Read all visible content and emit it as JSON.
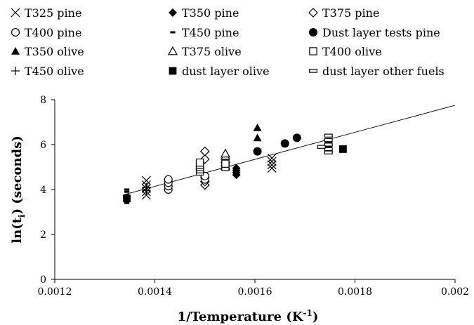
{
  "chart_data": {
    "type": "scatter",
    "title": "",
    "xlabel": "1/Temperature (K",
    "xlabel_sup": "-1",
    "xlabel_close": ")",
    "ylabel": "ln(t",
    "ylabel_sub": "i",
    "ylabel_close": ")  (seconds)",
    "xlim": [
      0.0012,
      0.002
    ],
    "ylim": [
      0,
      8
    ],
    "x_ticks": [
      "0.0012",
      "0.0014",
      "0.0016",
      "0.0018",
      "0.002"
    ],
    "y_ticks": [
      "0",
      "2",
      "4",
      "6",
      "8"
    ],
    "grid": false,
    "legend_position": "top",
    "trendline": {
      "x": [
        0.00134,
        0.002
      ],
      "y": [
        3.78,
        7.75
      ]
    },
    "series": [
      {
        "name": "T325 pine",
        "marker": "cross",
        "points": [
          [
            0.001383,
            3.75
          ],
          [
            0.001383,
            3.9
          ],
          [
            0.001383,
            4.05
          ],
          [
            0.001383,
            4.2
          ],
          [
            0.001383,
            4.4
          ],
          [
            0.001634,
            4.95
          ],
          [
            0.001634,
            5.1
          ],
          [
            0.001634,
            5.25
          ],
          [
            0.001634,
            5.4
          ]
        ]
      },
      {
        "name": "T350 pine",
        "marker": "diamond-filled",
        "points": [
          [
            0.001563,
            4.65
          ],
          [
            0.001563,
            4.75
          ],
          [
            0.001563,
            4.85
          ],
          [
            0.001563,
            4.95
          ]
        ]
      },
      {
        "name": "T375 pine",
        "marker": "diamond-open",
        "points": [
          [
            0.0015,
            4.2
          ],
          [
            0.0015,
            4.35
          ],
          [
            0.0015,
            4.55
          ],
          [
            0.0015,
            5.35
          ],
          [
            0.0015,
            5.7
          ]
        ]
      },
      {
        "name": "T400 pine",
        "marker": "circle-open",
        "points": [
          [
            0.001427,
            4.0
          ],
          [
            0.001427,
            4.15
          ],
          [
            0.001427,
            4.3
          ],
          [
            0.001427,
            4.45
          ],
          [
            0.0015,
            4.45
          ],
          [
            0.0015,
            4.6
          ]
        ]
      },
      {
        "name": "T450 pine",
        "marker": "dash",
        "points": [
          [
            0.001344,
            3.4
          ],
          [
            0.001344,
            3.55
          ],
          [
            0.001344,
            3.75
          ],
          [
            0.001344,
            3.9
          ],
          [
            0.001344,
            4.0
          ]
        ]
      },
      {
        "name": "Dust layer tests pine",
        "marker": "circle-filled",
        "points": [
          [
            0.001605,
            5.7
          ],
          [
            0.00166,
            6.05
          ],
          [
            0.001684,
            6.3
          ]
        ]
      },
      {
        "name": "T350 olive",
        "marker": "triangle-filled",
        "points": [
          [
            0.001605,
            6.3
          ],
          [
            0.001605,
            6.75
          ]
        ]
      },
      {
        "name": "T375 olive",
        "marker": "triangle-open",
        "points": [
          [
            0.001541,
            5.05
          ],
          [
            0.001541,
            5.2
          ],
          [
            0.001541,
            5.35
          ],
          [
            0.001541,
            5.5
          ],
          [
            0.001541,
            5.6
          ]
        ]
      },
      {
        "name": "T400 olive",
        "marker": "square-open",
        "points": [
          [
            0.00149,
            4.8
          ],
          [
            0.00149,
            4.9
          ],
          [
            0.00149,
            5.0
          ],
          [
            0.00149,
            5.1
          ],
          [
            0.00149,
            5.2
          ],
          [
            0.001541,
            5.0
          ],
          [
            0.001541,
            5.15
          ]
        ]
      },
      {
        "name": "T450 olive",
        "marker": "plus",
        "points": [
          [
            0.001383,
            3.95
          ],
          [
            0.001383,
            4.1
          ]
        ]
      },
      {
        "name": "dust layer olive",
        "marker": "square-filled",
        "points": [
          [
            0.001344,
            3.6
          ],
          [
            0.001747,
            6.05
          ],
          [
            0.001776,
            5.8
          ]
        ]
      },
      {
        "name": "dust layer other fuels",
        "marker": "rect-open",
        "points": [
          [
            0.001747,
            5.65
          ],
          [
            0.001747,
            5.8
          ],
          [
            0.001747,
            6.0
          ],
          [
            0.001747,
            6.2
          ],
          [
            0.001747,
            6.4
          ],
          [
            0.001733,
            5.9
          ]
        ]
      }
    ]
  }
}
